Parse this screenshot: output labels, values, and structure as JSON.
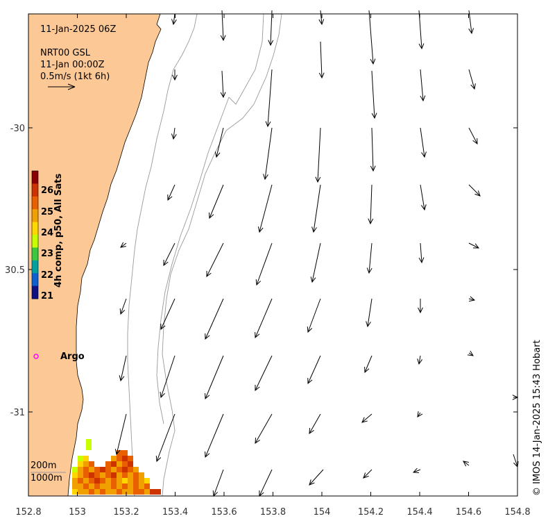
{
  "map": {
    "date_label": "11-Jan-2025 06Z",
    "product_label": "NRT00 GSL",
    "time_label": "11-Jan 00:00Z",
    "scale_label": "0.5m/s (1kt 6h)",
    "argo_label": "Argo",
    "credit": "© IMOS 14-Jan-2025 15:43 Hobart",
    "contour_200": "200m",
    "contour_1000": "1000m"
  },
  "colorbar": {
    "title": "4h comp, p50, All Sats",
    "ticks": [
      "26",
      "25",
      "24",
      "23",
      "22",
      "21"
    ],
    "colors": [
      "#8b0000",
      "#cc3300",
      "#e86000",
      "#f0a000",
      "#ffd700",
      "#c8ff00",
      "#3cc83c",
      "#00a0a0",
      "#1060d0",
      "#101080"
    ]
  },
  "axes": {
    "x_ticks": [
      "152.8",
      "153",
      "153.2",
      "153.4",
      "153.6",
      "153.8",
      "154",
      "154.2",
      "154.4",
      "154.6",
      "154.8"
    ],
    "y_ticks": [
      "-30",
      "30.5",
      "-31"
    ]
  },
  "colors": {
    "land": "#fcc896",
    "contour": "#999999",
    "argo": "#ff00ff"
  }
}
